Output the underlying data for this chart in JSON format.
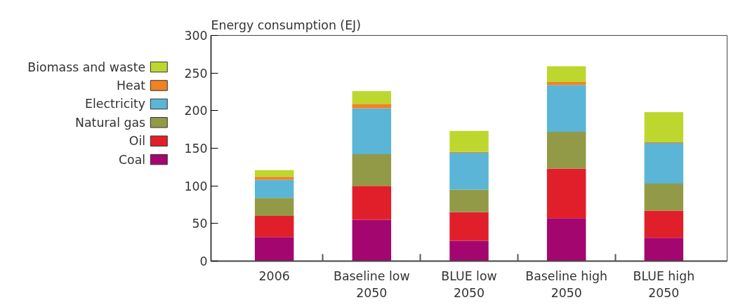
{
  "chart_data": {
    "type": "bar",
    "stacked": true,
    "ylabel": "Energy consumption (EJ)",
    "categories": [
      "2006",
      "Baseline low\n2050",
      "BLUE low\n2050",
      "Baseline high\n2050",
      "BLUE high\n2050"
    ],
    "series": [
      {
        "name": "Coal",
        "color": "#a3066f",
        "values": [
          32,
          55,
          27,
          57,
          31
        ]
      },
      {
        "name": "Oil",
        "color": "#e11f2a",
        "values": [
          28,
          45,
          38,
          66,
          36
        ]
      },
      {
        "name": "Natural gas",
        "color": "#929a47",
        "values": [
          24,
          42,
          30,
          49,
          36
        ]
      },
      {
        "name": "Electricity",
        "color": "#5ab5d6",
        "values": [
          24,
          61,
          49,
          62,
          54
        ]
      },
      {
        "name": "Heat",
        "color": "#f18222",
        "values": [
          4,
          6,
          1,
          4,
          1
        ]
      },
      {
        "name": "Biomass and waste",
        "color": "#bed72f",
        "values": [
          9,
          17,
          28,
          21,
          40
        ]
      }
    ],
    "ylim": [
      0,
      300
    ],
    "yticks": [
      0,
      50,
      100,
      150,
      200,
      250,
      300
    ],
    "grid": false,
    "legend": "left"
  }
}
